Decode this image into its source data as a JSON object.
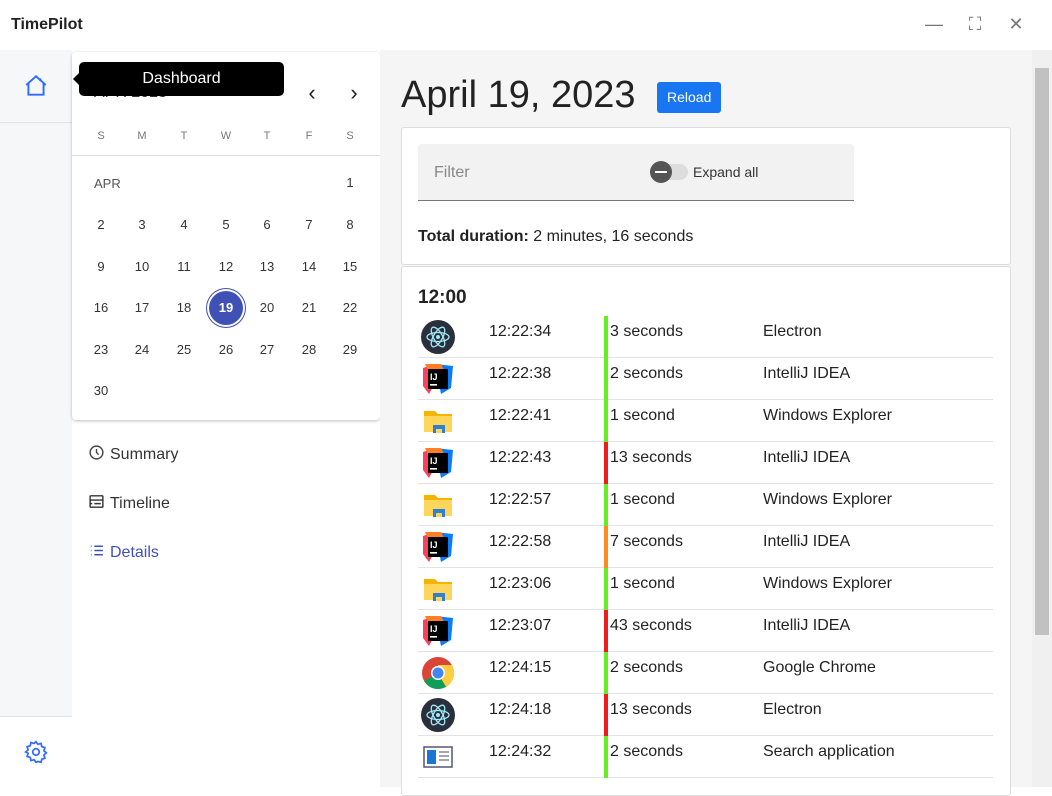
{
  "window": {
    "title": "TimePilot",
    "minimize_icon": "minimize-icon",
    "maximize_icon": "maximize-icon",
    "close_icon": "close-icon"
  },
  "rail": {
    "home_icon": "home-icon",
    "settings_icon": "gear-icon",
    "tooltip": "Dashboard"
  },
  "calendar": {
    "header": "APR 2023",
    "month_label": "APR",
    "weekdays": [
      "S",
      "M",
      "T",
      "W",
      "T",
      "F",
      "S"
    ],
    "selected_day": 19,
    "days": [
      "1",
      "2",
      "3",
      "4",
      "5",
      "6",
      "7",
      "8",
      "9",
      "10",
      "11",
      "12",
      "13",
      "14",
      "15",
      "16",
      "17",
      "18",
      "19",
      "20",
      "21",
      "22",
      "23",
      "24",
      "25",
      "26",
      "27",
      "28",
      "29",
      "30"
    ]
  },
  "nav": [
    {
      "label": "Summary",
      "icon": "clock-icon"
    },
    {
      "label": "Timeline",
      "icon": "timeline-icon"
    },
    {
      "label": "Details",
      "icon": "list-icon",
      "active": true
    }
  ],
  "main": {
    "date": "April 19, 2023",
    "reload": "Reload",
    "filter_placeholder": "Filter",
    "expand_all": "Expand all",
    "total_label": "Total duration:",
    "total_value": "2 minutes, 16 seconds",
    "hour": "12:00"
  },
  "colors": {
    "accent": "#3f51b5",
    "button": "#1976f2",
    "short": "#66ee22",
    "medium": "#ff8a1f",
    "long": "#ee1c1c"
  },
  "entries": [
    {
      "time": "12:22:34",
      "duration": "3 seconds",
      "app": "Electron",
      "icon": "electron",
      "level": "short"
    },
    {
      "time": "12:22:38",
      "duration": "2 seconds",
      "app": "IntelliJ IDEA",
      "icon": "intellij",
      "level": "short"
    },
    {
      "time": "12:22:41",
      "duration": "1 second",
      "app": "Windows Explorer",
      "icon": "explorer",
      "level": "short"
    },
    {
      "time": "12:22:43",
      "duration": "13 seconds",
      "app": "IntelliJ IDEA",
      "icon": "intellij",
      "level": "long"
    },
    {
      "time": "12:22:57",
      "duration": "1 second",
      "app": "Windows Explorer",
      "icon": "explorer",
      "level": "short"
    },
    {
      "time": "12:22:58",
      "duration": "7 seconds",
      "app": "IntelliJ IDEA",
      "icon": "intellij",
      "level": "medium"
    },
    {
      "time": "12:23:06",
      "duration": "1 second",
      "app": "Windows Explorer",
      "icon": "explorer",
      "level": "short"
    },
    {
      "time": "12:23:07",
      "duration": "43 seconds",
      "app": "IntelliJ IDEA",
      "icon": "intellij",
      "level": "long"
    },
    {
      "time": "12:24:15",
      "duration": "2 seconds",
      "app": "Google Chrome",
      "icon": "chrome",
      "level": "short"
    },
    {
      "time": "12:24:18",
      "duration": "13 seconds",
      "app": "Electron",
      "icon": "electron",
      "level": "long"
    },
    {
      "time": "12:24:32",
      "duration": "2 seconds",
      "app": "Search application",
      "icon": "search-app",
      "level": "short"
    }
  ]
}
